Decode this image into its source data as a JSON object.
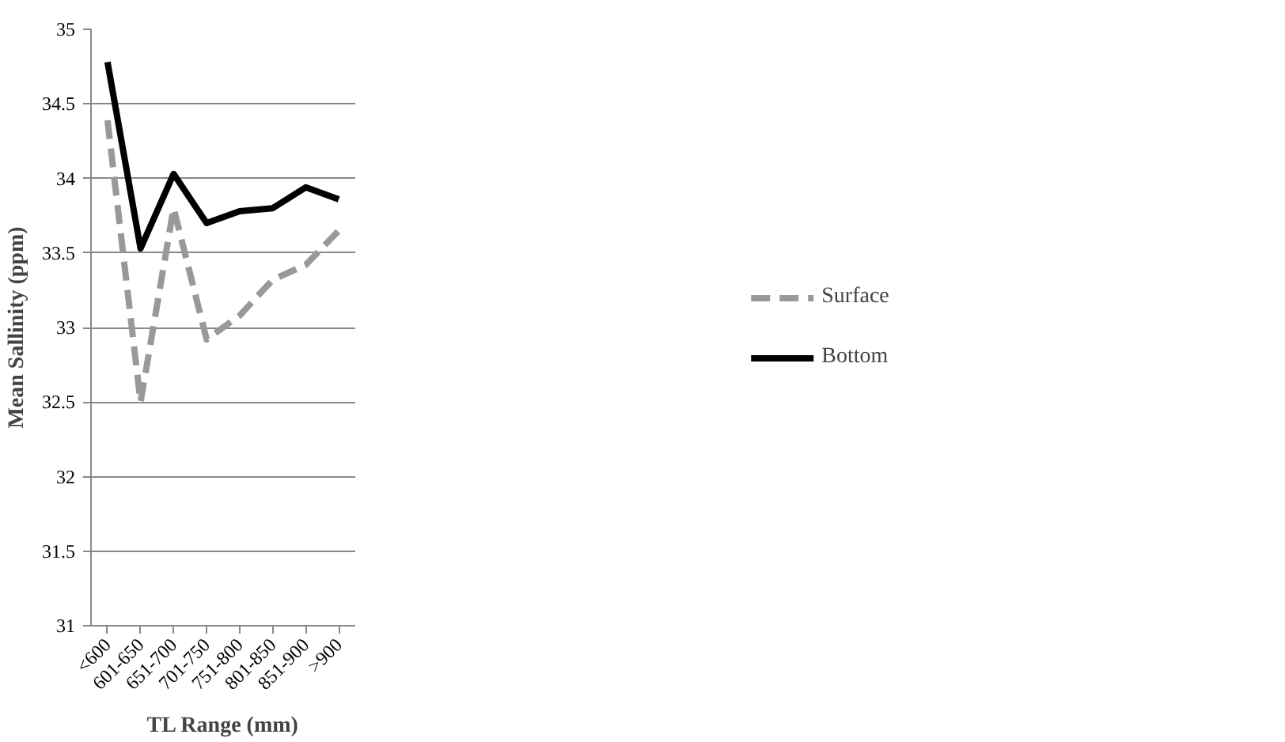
{
  "chart_data": {
    "type": "line",
    "xlabel": "TL Range (mm)",
    "ylabel": "Mean Sallinity (ppm)",
    "categories": [
      "<600",
      "601-650",
      "651-700",
      "701-750",
      "751-800",
      "801-850",
      "851-900",
      ">900"
    ],
    "series": [
      {
        "name": "Surface",
        "color": "#999999",
        "line_style": "dashed",
        "values": [
          34.39,
          32.5,
          33.8,
          32.92,
          33.08,
          33.32,
          33.42,
          33.65
        ]
      },
      {
        "name": "Bottom",
        "color": "#000000",
        "line_style": "solid",
        "values": [
          34.78,
          33.53,
          34.03,
          33.7,
          33.78,
          33.8,
          33.94,
          33.86
        ]
      }
    ],
    "ylim": [
      31,
      35
    ],
    "yticks": [
      31,
      31.5,
      32,
      32.5,
      33,
      33.5,
      34,
      34.5,
      35
    ],
    "grid": "y",
    "legend": "right",
    "marker": "none"
  }
}
